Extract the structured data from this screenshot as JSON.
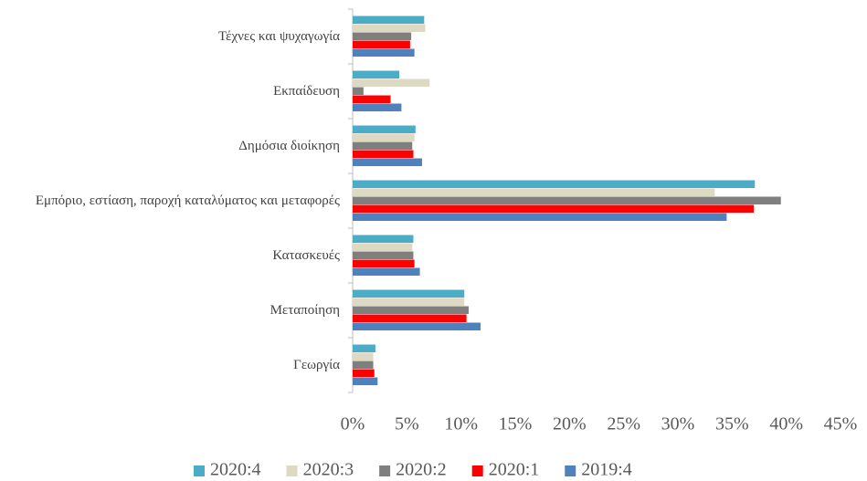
{
  "chart_data": {
    "type": "barh",
    "categories": [
      "Τέχνες και ψυχαγωγία",
      "Εκπαίδευση",
      "Δημόσια διοίκηση",
      "Εμπόριο, εστίαση, παροχή καταλύματος και μεταφορές",
      "Κατασκευές",
      "Μεταποίηση",
      "Γεωργία"
    ],
    "series": [
      {
        "name": "2020:4",
        "color": "#4bacc6",
        "values": [
          6.6,
          4.3,
          5.8,
          37.1,
          5.6,
          10.3,
          2.1
        ]
      },
      {
        "name": "2020:3",
        "color": "#ddd9c3",
        "values": [
          6.7,
          7.1,
          5.7,
          33.4,
          5.5,
          10.3,
          1.9
        ]
      },
      {
        "name": "2020:2",
        "color": "#7f7f7f",
        "values": [
          5.4,
          1.0,
          5.5,
          39.5,
          5.6,
          10.7,
          1.9
        ]
      },
      {
        "name": "2020:1",
        "color": "#ff0000",
        "values": [
          5.3,
          3.5,
          5.6,
          37.0,
          5.7,
          10.5,
          2.0
        ]
      },
      {
        "name": "2019:4",
        "color": "#4f81bd",
        "values": [
          5.7,
          4.5,
          6.4,
          34.5,
          6.2,
          11.8,
          2.3
        ]
      }
    ],
    "xlim": [
      0,
      45
    ],
    "xticks": [
      {
        "value": 0,
        "label": "0%"
      },
      {
        "value": 5,
        "label": "5%"
      },
      {
        "value": 10,
        "label": "10%"
      },
      {
        "value": 15,
        "label": "15%"
      },
      {
        "value": 20,
        "label": "20%"
      },
      {
        "value": 25,
        "label": "25%"
      },
      {
        "value": 30,
        "label": "30%"
      },
      {
        "value": 35,
        "label": "35%"
      },
      {
        "value": 40,
        "label": "40%"
      },
      {
        "value": 45,
        "label": "45%"
      }
    ],
    "legend": "bottom"
  }
}
